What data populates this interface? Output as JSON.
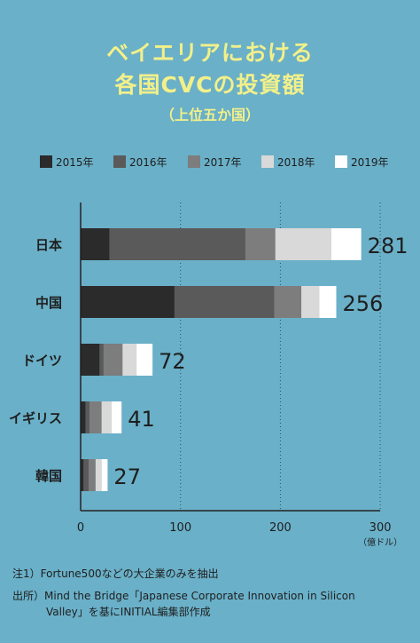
{
  "title_line1": "ベイエリアにおける",
  "title_line2": "各国CVCの投資額",
  "subtitle": "（上位五か国）",
  "colors": {
    "2015年": "#2b2b2b",
    "2016年": "#5a5a5a",
    "2017年": "#7d7d7d",
    "2018年": "#d9d9d9",
    "2019年": "#ffffff",
    "background": "#6ab0c8",
    "title": "#f2f08a"
  },
  "chart_data": {
    "type": "bar",
    "orientation": "horizontal",
    "stacked": true,
    "categories": [
      "日本",
      "中国",
      "ドイツ",
      "イギリス",
      "韓国"
    ],
    "series": [
      {
        "name": "2015年",
        "values": [
          29,
          94,
          19,
          5,
          3
        ]
      },
      {
        "name": "2016年",
        "values": [
          136,
          100,
          4,
          4,
          5
        ]
      },
      {
        "name": "2017年",
        "values": [
          30,
          27,
          19,
          12,
          7
        ]
      },
      {
        "name": "2018年",
        "values": [
          56,
          18,
          14,
          10,
          6
        ]
      },
      {
        "name": "2019年",
        "values": [
          30,
          17,
          16,
          10,
          6
        ]
      }
    ],
    "totals": [
      281,
      256,
      72,
      41,
      27
    ],
    "total_labels": [
      "281",
      "256",
      "72",
      "41",
      "27"
    ],
    "x_ticks": [
      "0",
      "100",
      "200",
      "300"
    ],
    "xlim": [
      0,
      300
    ],
    "unit_label": "（億ドル）",
    "legend_position": "top",
    "grid": "dotted vertical at 100, 200, 300"
  },
  "notes": {
    "note1": "注1）Fortune500などの大企業のみを抽出",
    "source_line1": "出所）Mind the Bridge「Japanese Corporate Innovation in Silicon",
    "source_line2": "Valley」を基にINITIAL編集部作成"
  }
}
